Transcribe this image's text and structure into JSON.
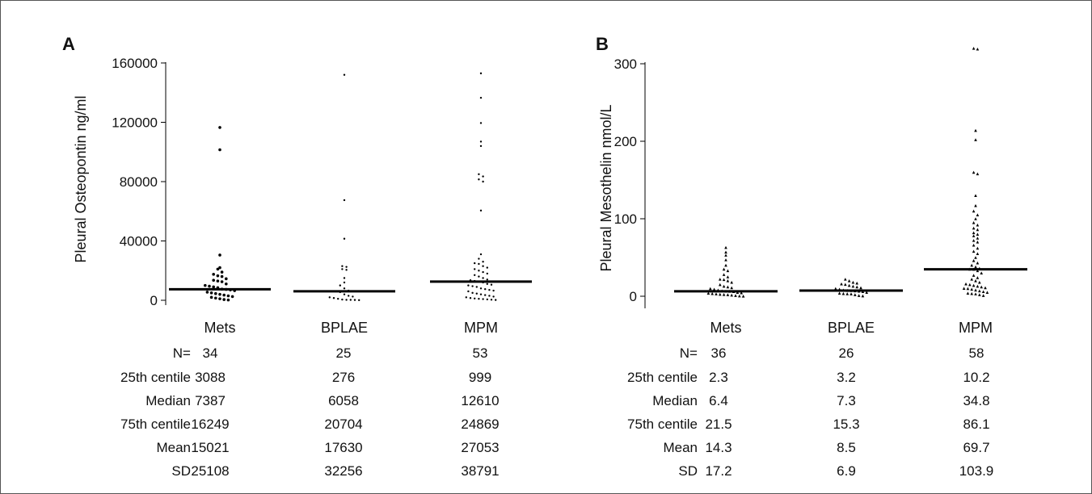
{
  "chart_data": [
    {
      "type": "scatter",
      "panel_label": "A",
      "ylabel": "Pleural Osteopontin ng/ml",
      "xlabel": "",
      "ylim": [
        0,
        160000
      ],
      "yticks": [
        0,
        40000,
        80000,
        120000,
        160000
      ],
      "categories": [
        "Mets",
        "BPLAE",
        "MPM"
      ],
      "medians": [
        7387,
        6058,
        12610
      ],
      "series": [
        {
          "category": "Mets",
          "values": [
            116500,
            101500,
            30500,
            22000,
            21000,
            19000,
            17500,
            16500,
            16000,
            14500,
            13500,
            13000,
            12500,
            11000,
            10000,
            9500,
            9000,
            8500,
            7500,
            7300,
            7000,
            6500,
            5500,
            5000,
            4500,
            4000,
            3500,
            3000,
            2500,
            2000,
            1500,
            1000,
            500,
            200
          ]
        },
        {
          "category": "BPLAE",
          "values": [
            152000,
            67500,
            41500,
            23000,
            22500,
            21000,
            20500,
            15000,
            12000,
            10000,
            8000,
            6500,
            6000,
            5500,
            4000,
            3000,
            2500,
            2000,
            1500,
            1000,
            500,
            300,
            276,
            200,
            100
          ]
        },
        {
          "category": "MPM",
          "values": [
            153000,
            136500,
            119500,
            107000,
            104000,
            85000,
            83500,
            81500,
            80000,
            60500,
            31000,
            28000,
            26000,
            25000,
            24500,
            23000,
            22000,
            21000,
            20000,
            19000,
            18000,
            17000,
            16000,
            15000,
            14000,
            13500,
            13000,
            12610,
            12000,
            11000,
            10500,
            10000,
            9500,
            9000,
            8000,
            7500,
            7000,
            6500,
            6000,
            5000,
            4500,
            4000,
            3500,
            3000,
            2500,
            2000,
            1500,
            1200,
            1000,
            800,
            600,
            400,
            200
          ]
        }
      ],
      "table": {
        "row_labels": [
          "N=",
          "25th centile",
          "Median",
          "75th centile",
          "Mean",
          "SD"
        ],
        "columns": [
          [
            "34",
            "3088",
            "7387",
            "16249",
            "15021",
            "25108"
          ],
          [
            "25",
            "276",
            "6058",
            "20704",
            "17630",
            "32256"
          ],
          [
            "53",
            "999",
            "12610",
            "24869",
            "27053",
            "38791"
          ]
        ]
      }
    },
    {
      "type": "scatter",
      "panel_label": "B",
      "ylabel": "Pleural Mesothelin nmol/L",
      "xlabel": "",
      "ylim": [
        -20,
        320
      ],
      "yticks": [
        0,
        100,
        200,
        300
      ],
      "categories": [
        "Mets",
        "BPLAE",
        "MPM"
      ],
      "medians": [
        6.4,
        7.3,
        34.8
      ],
      "series": [
        {
          "category": "Mets",
          "values": [
            63,
            57,
            53,
            47,
            40,
            35,
            33,
            28,
            25,
            22,
            21.5,
            20,
            18,
            15,
            13,
            12,
            11,
            10,
            9,
            8,
            7,
            6.5,
            6.4,
            6,
            5,
            4.5,
            4,
            3.5,
            3,
            2.5,
            2.3,
            2,
            1.5,
            1,
            0.5,
            0.2
          ]
        },
        {
          "category": "BPLAE",
          "values": [
            22,
            20,
            18,
            17,
            16,
            15.3,
            14,
            13,
            12,
            11,
            10,
            9,
            8,
            7.5,
            7.3,
            7,
            6.5,
            6,
            5,
            4,
            3.5,
            3.2,
            3,
            2,
            1,
            0.5
          ]
        },
        {
          "category": "MPM",
          "values": [
            320,
            319,
            214,
            202,
            160,
            158,
            130,
            117,
            110,
            105,
            100,
            95,
            92,
            88,
            86,
            82,
            80,
            78,
            75,
            72,
            70,
            66,
            62,
            58,
            55,
            50,
            46,
            43,
            40,
            38,
            36,
            35,
            34.8,
            33,
            30,
            27,
            24,
            22,
            20,
            18,
            16,
            15,
            14,
            13,
            12,
            11,
            10.2,
            10,
            9,
            8,
            7,
            6,
            5,
            4,
            3.5,
            3,
            2,
            1
          ]
        }
      ],
      "table": {
        "row_labels": [
          "N=",
          "25th centile",
          "Median",
          "75th centile",
          "Mean",
          "SD"
        ],
        "columns": [
          [
            "36",
            "2.3",
            "6.4",
            "21.5",
            "14.3",
            "17.2"
          ],
          [
            "26",
            "3.2",
            "7.3",
            "15.3",
            "8.5",
            "6.9"
          ],
          [
            "58",
            "10.2",
            "34.8",
            "86.1",
            "69.7",
            "103.9"
          ]
        ]
      }
    }
  ]
}
